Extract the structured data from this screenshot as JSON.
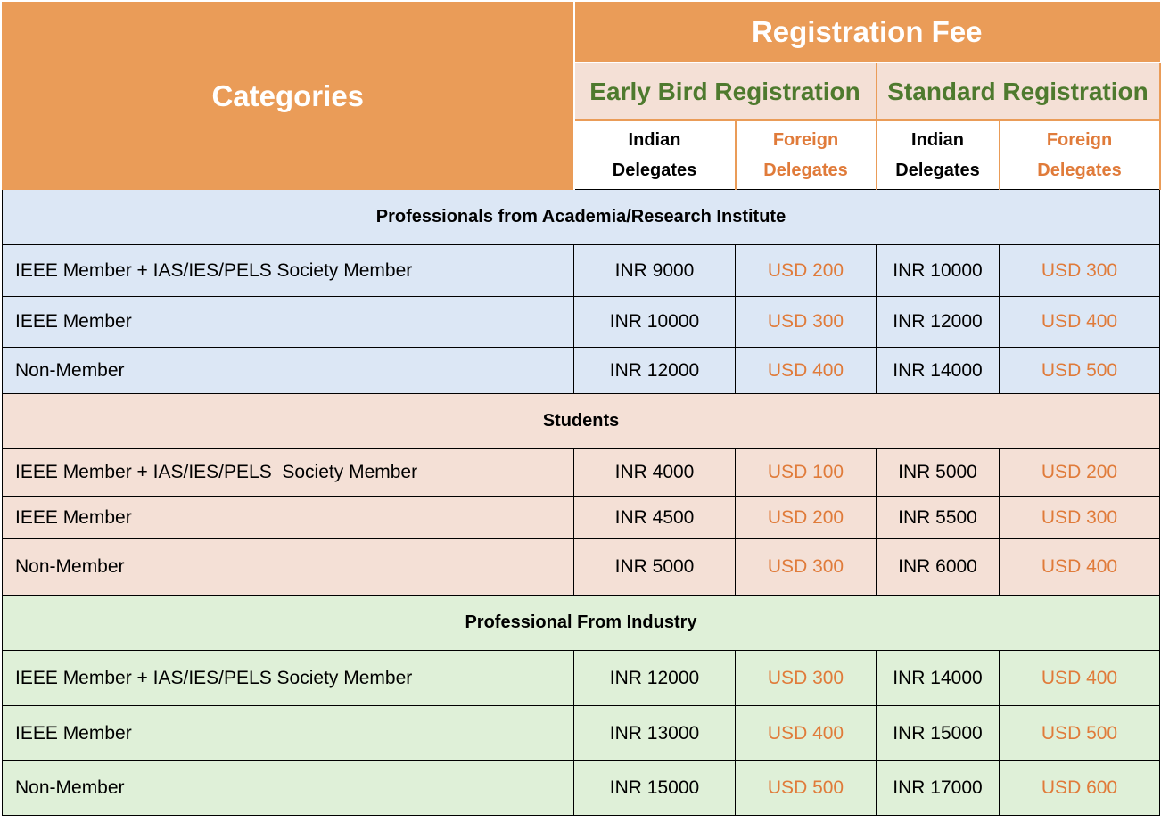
{
  "header": {
    "categories": "Categories",
    "registration_fee": "Registration Fee",
    "early_bird": "Early Bird Registration",
    "standard": "Standard Registration",
    "indian_line1": "Indian",
    "indian_line2": "Delegates",
    "foreign_line1": "Foreign",
    "foreign_line2": "Delegates"
  },
  "groups": [
    {
      "title": "Professionals from Academia/Research Institute",
      "rows": [
        {
          "category": "IEEE Member + IAS/IES/PELS Society Member",
          "eb_indian": "INR 9000",
          "eb_foreign": "USD 200",
          "std_indian": "INR 10000",
          "std_foreign": "USD 300"
        },
        {
          "category": "IEEE Member",
          "eb_indian": "INR 10000",
          "eb_foreign": "USD 300",
          "std_indian": "INR 12000",
          "std_foreign": "USD 400"
        },
        {
          "category": "Non-Member",
          "eb_indian": "INR 12000",
          "eb_foreign": "USD 400",
          "std_indian": "INR 14000",
          "std_foreign": "USD 500"
        }
      ]
    },
    {
      "title": "Students",
      "rows": [
        {
          "category": "IEEE Member + IAS/IES/PELS  Society Member",
          "eb_indian": "INR 4000",
          "eb_foreign": "USD 100",
          "std_indian": "INR 5000",
          "std_foreign": "USD 200"
        },
        {
          "category": "IEEE Member",
          "eb_indian": "INR 4500",
          "eb_foreign": "USD 200",
          "std_indian": "INR 5500",
          "std_foreign": "USD 300"
        },
        {
          "category": "Non-Member",
          "eb_indian": "INR 5000",
          "eb_foreign": "USD 300",
          "std_indian": "INR 6000",
          "std_foreign": "USD 400"
        }
      ]
    },
    {
      "title": "Professional From Industry",
      "rows": [
        {
          "category": "IEEE Member + IAS/IES/PELS Society Member",
          "eb_indian": "INR 12000",
          "eb_foreign": "USD 300",
          "std_indian": "INR 14000",
          "std_foreign": "USD 400"
        },
        {
          "category": "IEEE Member",
          "eb_indian": "INR 13000",
          "eb_foreign": "USD 400",
          "std_indian": "INR 15000",
          "std_foreign": "USD 500"
        },
        {
          "category": "Non-Member",
          "eb_indian": "INR 15000",
          "eb_foreign": "USD 500",
          "std_indian": "INR 17000",
          "std_foreign": "USD 600"
        }
      ]
    }
  ],
  "colors": {
    "header_orange": "#ea9c58",
    "green_text": "#4e7a2e",
    "usd_orange": "#e07b3a",
    "academia_bg": "#dce7f5",
    "students_bg": "#f4e0d6",
    "industry_bg": "#dff0d8"
  }
}
